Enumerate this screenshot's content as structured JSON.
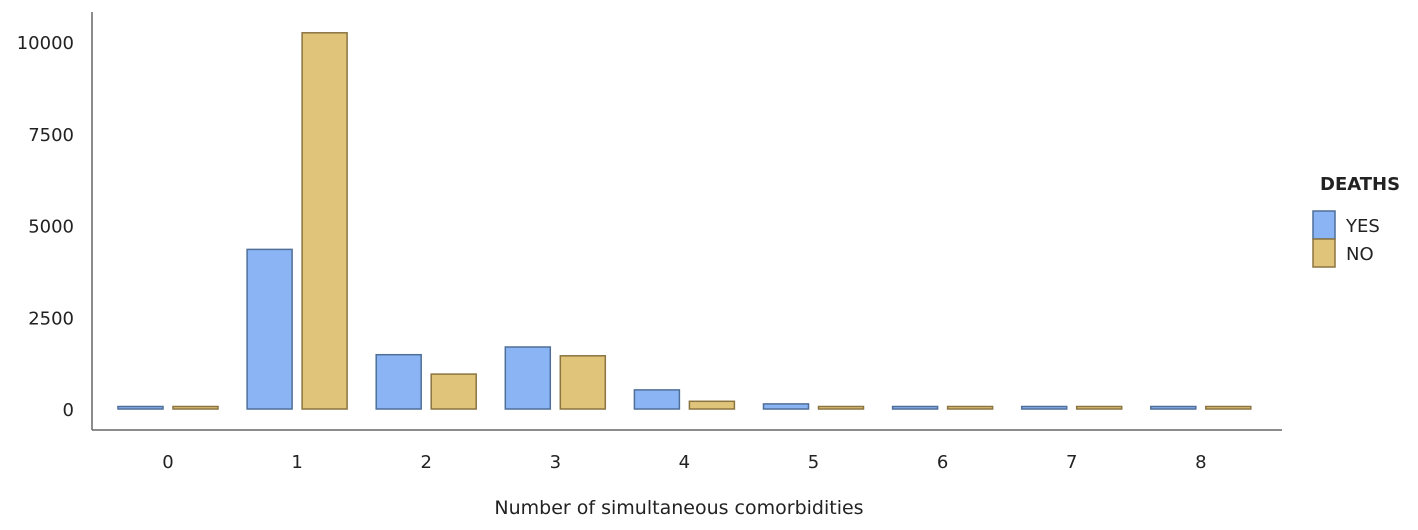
{
  "chart_data": {
    "type": "bar",
    "xlabel": "Number of simultaneous comorbidities",
    "ylabel": "",
    "categories": [
      "0",
      "1",
      "2",
      "3",
      "4",
      "5",
      "6",
      "7",
      "8"
    ],
    "ylim": [
      0,
      10500
    ],
    "yticks": [
      "0",
      "2500",
      "5000",
      "7500",
      "10000"
    ],
    "grid": false,
    "legend": {
      "title": "DEATHS",
      "placement": "right"
    },
    "series": [
      {
        "name": "YES",
        "color": "#8ab4f3",
        "values": [
          20,
          4350,
          1480,
          1690,
          520,
          140,
          25,
          20,
          15
        ]
      },
      {
        "name": "NO",
        "color": "#e0c47a",
        "values": [
          40,
          10250,
          950,
          1450,
          210,
          45,
          25,
          20,
          15
        ]
      }
    ]
  }
}
